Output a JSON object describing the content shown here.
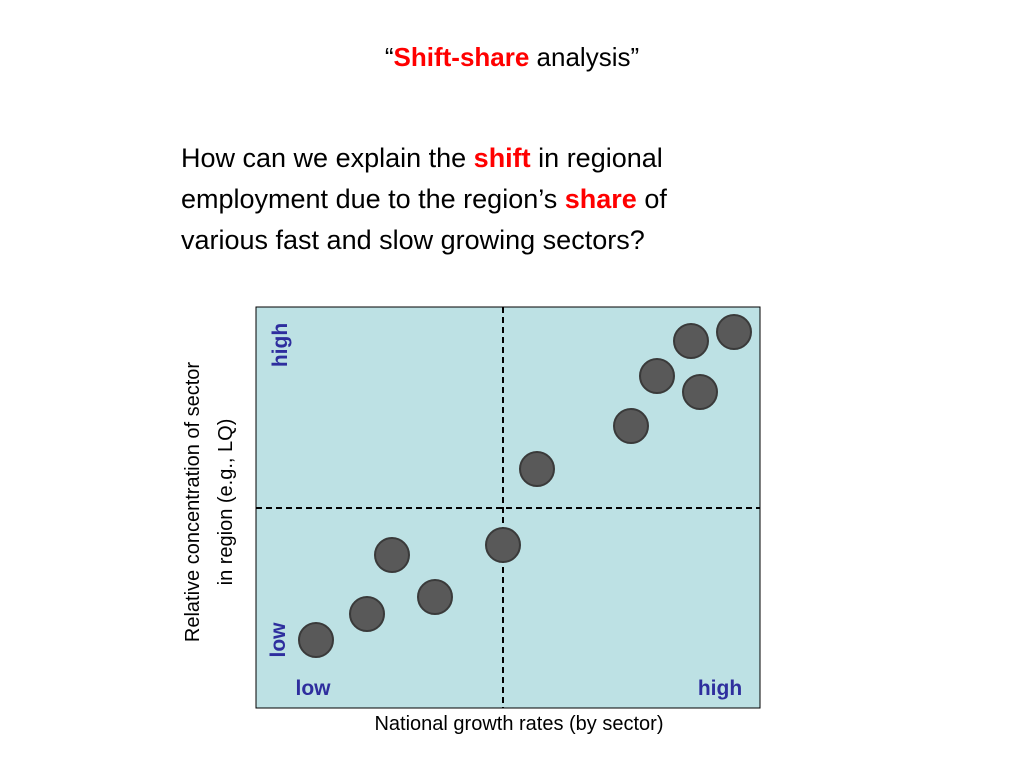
{
  "title": {
    "open": "“",
    "highlight": "Shift-share",
    "rest": " analysis”"
  },
  "question": {
    "lines": [
      [
        "How can we explain the ",
        "shift",
        " in regional"
      ],
      [
        "employment due to the region’s ",
        "share",
        " of"
      ],
      [
        "various fast and slow growing sectors?"
      ]
    ]
  },
  "diagram": {
    "y_axis_label": [
      "Relative concentration of sector",
      "in region (e.g., LQ)"
    ],
    "y_high": "high",
    "y_low": "low",
    "x_low": "low",
    "x_high": "high",
    "x_axis_label": "National growth rates (by sector)"
  }
}
